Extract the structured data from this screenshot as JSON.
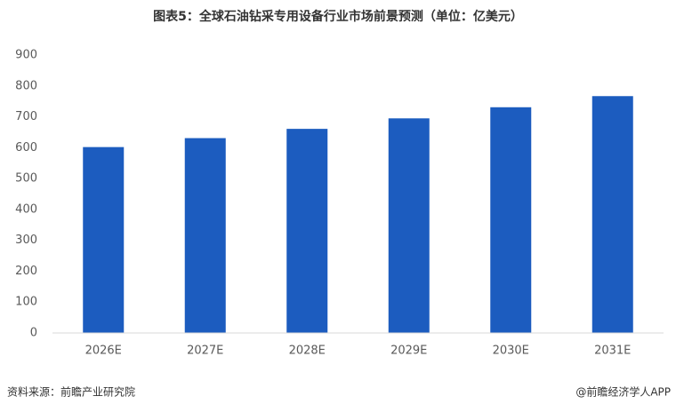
{
  "chart_data": {
    "type": "bar",
    "title": "图表5：全球石油钻采专用设备行业市场前景预测（单位：亿美元）",
    "categories": [
      "2026E",
      "2027E",
      "2028E",
      "2029E",
      "2030E",
      "2031E"
    ],
    "values": [
      602,
      631,
      661,
      695,
      731,
      767
    ],
    "color": "#1c5cbf",
    "ylim": [
      0,
      900
    ],
    "yticks": [
      0,
      100,
      200,
      300,
      400,
      500,
      600,
      700,
      800,
      900
    ],
    "grid": false,
    "source": "资料来源：前瞻产业研究院",
    "credit": "@前瞻经济学人APP"
  }
}
